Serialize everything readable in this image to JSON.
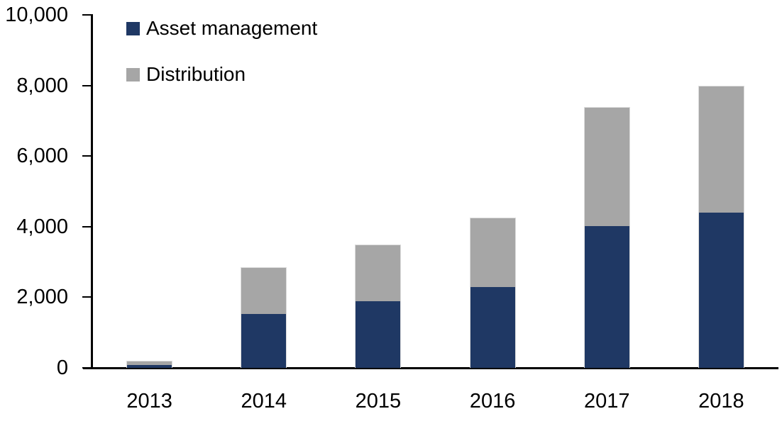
{
  "chart_data": {
    "type": "bar",
    "stacked": true,
    "title": "",
    "xlabel": "",
    "ylabel": "",
    "categories": [
      "2013",
      "2014",
      "2015",
      "2016",
      "2017",
      "2018"
    ],
    "series": [
      {
        "name": "Asset management",
        "color": "#1F3864",
        "values": [
          100,
          1550,
          1900,
          2300,
          4040,
          4420
        ]
      },
      {
        "name": "Distribution",
        "color": "#A6A6A6",
        "values": [
          100,
          1300,
          1600,
          1950,
          3340,
          3580
        ]
      }
    ],
    "totals": [
      200,
      2850,
      3500,
      4250,
      7380,
      8000
    ],
    "ylim": [
      0,
      10000
    ],
    "ytick_step": 2000,
    "ytick_labels": [
      "0",
      "2,000",
      "4,000",
      "6,000",
      "8,000",
      "10,000"
    ],
    "grid": false,
    "legend_position": "top-left",
    "axis_color": "#000000",
    "background_color": "#FFFFFF"
  }
}
